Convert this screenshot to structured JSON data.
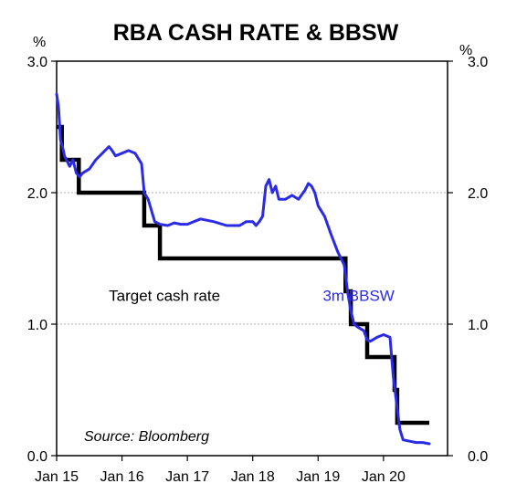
{
  "chart_data": {
    "type": "line",
    "title": "RBA CASH RATE & BBSW",
    "left_unit": "%",
    "right_unit": "%",
    "source": "Source: Bloomberg",
    "ylim": [
      0,
      3
    ],
    "yticks": [
      {
        "value": 0,
        "label": "0.0"
      },
      {
        "value": 1,
        "label": "1.0"
      },
      {
        "value": 2,
        "label": "2.0"
      },
      {
        "value": 3,
        "label": "3.0"
      }
    ],
    "xlim": [
      2015.0,
      2020.98
    ],
    "xticks": [
      {
        "value": 2015.0,
        "label": "Jan 15"
      },
      {
        "value": 2016.0,
        "label": "Jan 16"
      },
      {
        "value": 2017.0,
        "label": "Jan 17"
      },
      {
        "value": 2018.0,
        "label": "Jan 18"
      },
      {
        "value": 2019.0,
        "label": "Jan 19"
      },
      {
        "value": 2020.0,
        "label": "Jan 20"
      }
    ],
    "grid": "horizontal-dashed",
    "series": [
      {
        "name": "Target cash rate",
        "color": "#000000",
        "step": true,
        "x": [
          2015.0,
          2015.08,
          2015.34,
          2016.34,
          2016.58,
          2019.42,
          2019.5,
          2019.75,
          2020.17,
          2020.21,
          2020.7
        ],
        "y": [
          2.5,
          2.25,
          2.0,
          1.75,
          1.5,
          1.25,
          1.0,
          0.75,
          0.5,
          0.25,
          0.25
        ]
      },
      {
        "name": "3m BBSW",
        "color": "#2b2be6",
        "step": false,
        "x": [
          2015.0,
          2015.03,
          2015.06,
          2015.09,
          2015.12,
          2015.15,
          2015.2,
          2015.25,
          2015.3,
          2015.35,
          2015.4,
          2015.5,
          2015.6,
          2015.7,
          2015.8,
          2015.85,
          2015.9,
          2016.0,
          2016.1,
          2016.2,
          2016.3,
          2016.34,
          2016.4,
          2016.5,
          2016.58,
          2016.7,
          2016.8,
          2016.9,
          2017.0,
          2017.2,
          2017.4,
          2017.6,
          2017.8,
          2017.9,
          2018.0,
          2018.05,
          2018.1,
          2018.15,
          2018.2,
          2018.25,
          2018.3,
          2018.35,
          2018.4,
          2018.5,
          2018.6,
          2018.7,
          2018.8,
          2018.85,
          2018.9,
          2018.95,
          2019.0,
          2019.1,
          2019.2,
          2019.3,
          2019.35,
          2019.4,
          2019.45,
          2019.5,
          2019.55,
          2019.6,
          2019.7,
          2019.75,
          2019.8,
          2019.9,
          2020.0,
          2020.1,
          2020.15,
          2020.2,
          2020.25,
          2020.3,
          2020.4,
          2020.5,
          2020.6,
          2020.7
        ],
        "y": [
          2.75,
          2.65,
          2.4,
          2.35,
          2.28,
          2.25,
          2.2,
          2.25,
          2.15,
          2.12,
          2.15,
          2.18,
          2.25,
          2.3,
          2.35,
          2.32,
          2.28,
          2.3,
          2.32,
          2.3,
          2.22,
          2.0,
          1.95,
          1.78,
          1.76,
          1.75,
          1.77,
          1.76,
          1.76,
          1.8,
          1.78,
          1.75,
          1.75,
          1.78,
          1.78,
          1.75,
          1.78,
          1.82,
          2.05,
          2.1,
          2.0,
          2.05,
          1.95,
          1.95,
          1.98,
          1.95,
          2.02,
          2.07,
          2.05,
          2.0,
          1.9,
          1.82,
          1.68,
          1.55,
          1.5,
          1.45,
          1.25,
          1.1,
          1.0,
          0.98,
          0.95,
          0.88,
          0.87,
          0.9,
          0.92,
          0.9,
          0.6,
          0.4,
          0.2,
          0.12,
          0.11,
          0.1,
          0.1,
          0.09
        ]
      }
    ],
    "annotations": [
      {
        "text": "Target cash rate",
        "series": "Target cash rate",
        "x": 2016.65,
        "y": 1.22
      },
      {
        "text": "3m BBSW",
        "series": "3m BBSW",
        "x": 2019.62,
        "y": 1.22
      }
    ]
  }
}
